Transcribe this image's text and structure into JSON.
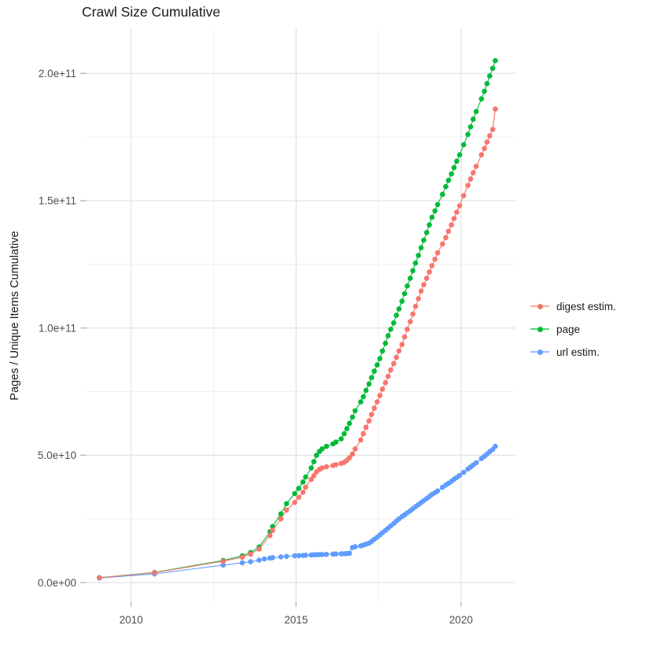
{
  "title": "Crawl Size Cumulative",
  "chart_data": {
    "type": "line",
    "title": "Crawl Size Cumulative",
    "xlabel": "",
    "ylabel": "Pages / Unique Items Cumulative",
    "legend_position": "right",
    "grid": "major+minor",
    "xlim": [
      2008.65,
      2021.65
    ],
    "ylim_e9": [
      -7.7,
      218
    ],
    "x_ticks": {
      "labels": [
        "2010",
        "2015",
        "2020"
      ],
      "values": [
        2010,
        2015,
        2020
      ],
      "minor": [
        2012.5,
        2017.5
      ]
    },
    "y_ticks": {
      "labels": [
        "0.0e+00",
        "5.0e+10",
        "1.0e+11",
        "1.5e+11",
        "2.0e+11"
      ],
      "values_e9": [
        0,
        50,
        100,
        150,
        200
      ],
      "minor_e9": [
        25,
        75,
        125,
        175
      ]
    },
    "value_unit": "items, stored as billions (1 = 1e9)",
    "series": [
      {
        "name": "digest estim.",
        "color": "#F8766D",
        "points": [
          [
            2009.04,
            1.9
          ],
          [
            2010.71,
            3.9
          ],
          [
            2012.79,
            8.4
          ],
          [
            2013.37,
            10.0
          ],
          [
            2013.62,
            11.2
          ],
          [
            2013.88,
            13.2
          ],
          [
            2014.21,
            18.5
          ],
          [
            2014.29,
            20.5
          ],
          [
            2014.54,
            25
          ],
          [
            2014.71,
            28.5
          ],
          [
            2014.96,
            31.5
          ],
          [
            2015.08,
            33.5
          ],
          [
            2015.21,
            35.5
          ],
          [
            2015.29,
            37.5
          ],
          [
            2015.46,
            40.5
          ],
          [
            2015.54,
            42
          ],
          [
            2015.62,
            43.5
          ],
          [
            2015.71,
            44.5
          ],
          [
            2015.79,
            45
          ],
          [
            2015.92,
            45.5
          ],
          [
            2016.12,
            46
          ],
          [
            2016.21,
            46.3
          ],
          [
            2016.37,
            46.8
          ],
          [
            2016.46,
            47.2
          ],
          [
            2016.54,
            48
          ],
          [
            2016.62,
            49
          ],
          [
            2016.71,
            50.5
          ],
          [
            2016.79,
            52.5
          ],
          [
            2016.96,
            56
          ],
          [
            2017.04,
            58.5
          ],
          [
            2017.12,
            61
          ],
          [
            2017.21,
            63.5
          ],
          [
            2017.29,
            66
          ],
          [
            2017.37,
            68.5
          ],
          [
            2017.46,
            71
          ],
          [
            2017.54,
            73.5
          ],
          [
            2017.62,
            76
          ],
          [
            2017.71,
            78.5
          ],
          [
            2017.79,
            81
          ],
          [
            2017.87,
            83.5
          ],
          [
            2017.96,
            86
          ],
          [
            2018.04,
            88.5
          ],
          [
            2018.12,
            91
          ],
          [
            2018.21,
            93.5
          ],
          [
            2018.29,
            96.5
          ],
          [
            2018.37,
            99.5
          ],
          [
            2018.46,
            102.5
          ],
          [
            2018.54,
            105.5
          ],
          [
            2018.62,
            108.5
          ],
          [
            2018.71,
            111.5
          ],
          [
            2018.79,
            114.5
          ],
          [
            2018.87,
            117
          ],
          [
            2018.96,
            119.5
          ],
          [
            2019.04,
            122
          ],
          [
            2019.12,
            124.5
          ],
          [
            2019.21,
            127
          ],
          [
            2019.29,
            129.5
          ],
          [
            2019.44,
            133
          ],
          [
            2019.54,
            135.5
          ],
          [
            2019.62,
            138
          ],
          [
            2019.71,
            140.5
          ],
          [
            2019.79,
            143
          ],
          [
            2019.87,
            145.5
          ],
          [
            2019.96,
            148
          ],
          [
            2020.08,
            152
          ],
          [
            2020.21,
            156
          ],
          [
            2020.29,
            158.5
          ],
          [
            2020.37,
            161
          ],
          [
            2020.46,
            163.5
          ],
          [
            2020.62,
            168
          ],
          [
            2020.71,
            170.5
          ],
          [
            2020.79,
            173
          ],
          [
            2020.87,
            175.5
          ],
          [
            2020.96,
            178
          ],
          [
            2021.04,
            186
          ]
        ]
      },
      {
        "name": "page",
        "color": "#00BA38",
        "points": [
          [
            2009.04,
            1.9
          ],
          [
            2010.71,
            4.0
          ],
          [
            2012.79,
            8.7
          ],
          [
            2013.37,
            10.5
          ],
          [
            2013.62,
            11.8
          ],
          [
            2013.88,
            14.0
          ],
          [
            2014.21,
            20
          ],
          [
            2014.29,
            22
          ],
          [
            2014.54,
            27
          ],
          [
            2014.71,
            31
          ],
          [
            2014.96,
            35
          ],
          [
            2015.08,
            37
          ],
          [
            2015.21,
            39.5
          ],
          [
            2015.29,
            41.5
          ],
          [
            2015.46,
            45
          ],
          [
            2015.54,
            47.5
          ],
          [
            2015.62,
            50
          ],
          [
            2015.71,
            51.5
          ],
          [
            2015.79,
            52.5
          ],
          [
            2015.92,
            53.5
          ],
          [
            2016.12,
            54.5
          ],
          [
            2016.21,
            55.2
          ],
          [
            2016.37,
            56.5
          ],
          [
            2016.46,
            58.5
          ],
          [
            2016.54,
            60.5
          ],
          [
            2016.62,
            62.5
          ],
          [
            2016.71,
            65
          ],
          [
            2016.79,
            67.5
          ],
          [
            2016.96,
            71
          ],
          [
            2017.04,
            73
          ],
          [
            2017.12,
            75.5
          ],
          [
            2017.21,
            78
          ],
          [
            2017.29,
            80.5
          ],
          [
            2017.37,
            83
          ],
          [
            2017.46,
            85.5
          ],
          [
            2017.54,
            88
          ],
          [
            2017.62,
            91
          ],
          [
            2017.71,
            94
          ],
          [
            2017.79,
            97
          ],
          [
            2017.87,
            99.5
          ],
          [
            2017.96,
            102
          ],
          [
            2018.04,
            105
          ],
          [
            2018.12,
            107.5
          ],
          [
            2018.21,
            110.5
          ],
          [
            2018.29,
            113.5
          ],
          [
            2018.37,
            116.5
          ],
          [
            2018.46,
            119.5
          ],
          [
            2018.54,
            122.5
          ],
          [
            2018.62,
            125.5
          ],
          [
            2018.71,
            128.5
          ],
          [
            2018.79,
            131.5
          ],
          [
            2018.87,
            134.5
          ],
          [
            2018.96,
            137.5
          ],
          [
            2019.04,
            140.5
          ],
          [
            2019.12,
            143.5
          ],
          [
            2019.21,
            146
          ],
          [
            2019.29,
            148.5
          ],
          [
            2019.44,
            152.5
          ],
          [
            2019.54,
            155.5
          ],
          [
            2019.62,
            158
          ],
          [
            2019.71,
            160.5
          ],
          [
            2019.79,
            163
          ],
          [
            2019.87,
            165.5
          ],
          [
            2019.96,
            168
          ],
          [
            2020.08,
            172
          ],
          [
            2020.21,
            176
          ],
          [
            2020.29,
            179
          ],
          [
            2020.37,
            182
          ],
          [
            2020.46,
            185
          ],
          [
            2020.62,
            190
          ],
          [
            2020.71,
            193
          ],
          [
            2020.79,
            196
          ],
          [
            2020.87,
            199
          ],
          [
            2020.96,
            202
          ],
          [
            2021.04,
            205
          ]
        ]
      },
      {
        "name": "url estim.",
        "color": "#619CFF",
        "points": [
          [
            2009.04,
            1.8
          ],
          [
            2010.71,
            3.4
          ],
          [
            2012.79,
            6.9
          ],
          [
            2013.37,
            7.8
          ],
          [
            2013.62,
            8.2
          ],
          [
            2013.88,
            8.8
          ],
          [
            2014.04,
            9.3
          ],
          [
            2014.21,
            9.6
          ],
          [
            2014.29,
            9.8
          ],
          [
            2014.54,
            10.1
          ],
          [
            2014.71,
            10.3
          ],
          [
            2014.96,
            10.5
          ],
          [
            2015.08,
            10.6
          ],
          [
            2015.21,
            10.7
          ],
          [
            2015.29,
            10.75
          ],
          [
            2015.46,
            10.85
          ],
          [
            2015.54,
            10.9
          ],
          [
            2015.62,
            10.95
          ],
          [
            2015.71,
            11
          ],
          [
            2015.79,
            11.05
          ],
          [
            2015.92,
            11.1
          ],
          [
            2016.12,
            11.2
          ],
          [
            2016.21,
            11.25
          ],
          [
            2016.37,
            11.3
          ],
          [
            2016.46,
            11.35
          ],
          [
            2016.54,
            11.4
          ],
          [
            2016.62,
            11.5
          ],
          [
            2016.71,
            13.8
          ],
          [
            2016.79,
            14.1
          ],
          [
            2016.96,
            14.4
          ],
          [
            2017.04,
            14.7
          ],
          [
            2017.12,
            15.1
          ],
          [
            2017.21,
            15.5
          ],
          [
            2017.29,
            16.2
          ],
          [
            2017.37,
            17
          ],
          [
            2017.46,
            17.8
          ],
          [
            2017.54,
            18.7
          ],
          [
            2017.62,
            19.6
          ],
          [
            2017.71,
            20.5
          ],
          [
            2017.79,
            21.4
          ],
          [
            2017.87,
            22.3
          ],
          [
            2017.96,
            23.2
          ],
          [
            2018.04,
            24.1
          ],
          [
            2018.12,
            25
          ],
          [
            2018.21,
            25.9
          ],
          [
            2018.29,
            26.6
          ],
          [
            2018.37,
            27.4
          ],
          [
            2018.46,
            28.2
          ],
          [
            2018.54,
            29
          ],
          [
            2018.62,
            29.8
          ],
          [
            2018.71,
            30.6
          ],
          [
            2018.79,
            31.4
          ],
          [
            2018.87,
            32.2
          ],
          [
            2018.96,
            33
          ],
          [
            2019.04,
            33.8
          ],
          [
            2019.12,
            34.6
          ],
          [
            2019.21,
            35.3
          ],
          [
            2019.29,
            36
          ],
          [
            2019.44,
            37.4
          ],
          [
            2019.54,
            38.3
          ],
          [
            2019.62,
            39
          ],
          [
            2019.71,
            39.8
          ],
          [
            2019.79,
            40.6
          ],
          [
            2019.87,
            41.3
          ],
          [
            2019.96,
            42.1
          ],
          [
            2020.08,
            43.3
          ],
          [
            2020.21,
            44.6
          ],
          [
            2020.29,
            45.4
          ],
          [
            2020.37,
            46.2
          ],
          [
            2020.46,
            47.1
          ],
          [
            2020.62,
            48.7
          ],
          [
            2020.71,
            49.6
          ],
          [
            2020.79,
            50.5
          ],
          [
            2020.87,
            51.4
          ],
          [
            2020.96,
            52.3
          ],
          [
            2021.04,
            53.5
          ]
        ]
      }
    ],
    "draw_order_series_indices": [
      2,
      1,
      0
    ]
  },
  "colors": {
    "grid_major": "#e5e5e5",
    "grid_minor": "#f1f1f1",
    "tick_mark": "#b8b8b8",
    "tick_label": "#4d4d4d",
    "text": "#1a1a1a",
    "background": "#ffffff"
  }
}
